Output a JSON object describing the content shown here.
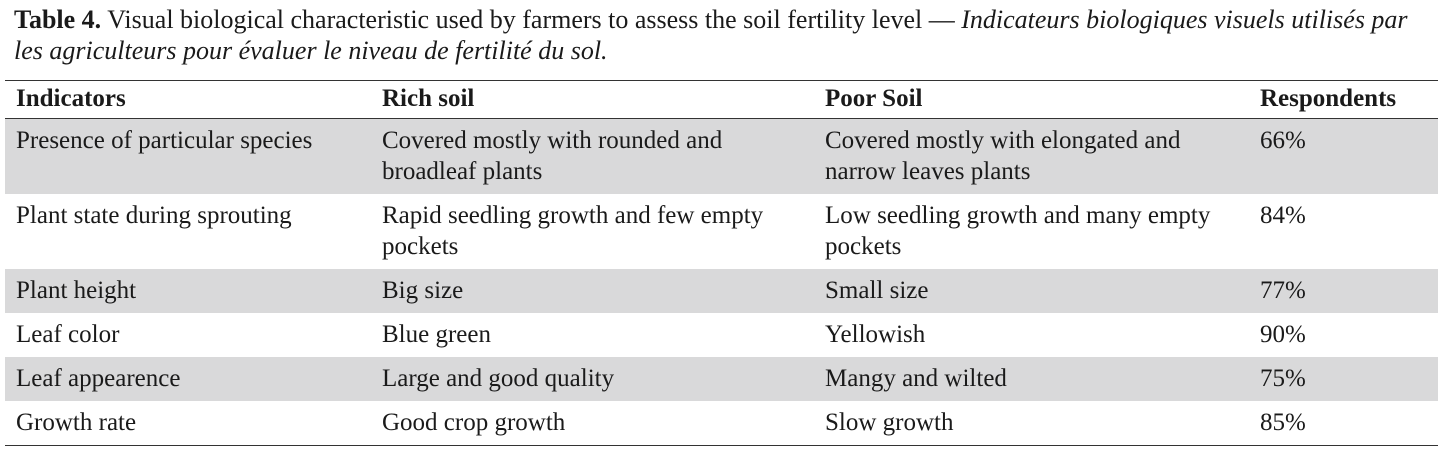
{
  "caption": {
    "label": "Table 4.",
    "text": "Visual biological characteristic used by farmers to assess the soil fertility level —",
    "text_fr": "Indicateurs biologiques visuels utilisés par les agriculteurs pour évaluer le niveau de fertilité du sol."
  },
  "table": {
    "headers": [
      "Indicators",
      "Rich soil",
      "Poor Soil",
      "Respondents"
    ],
    "rows": [
      [
        "Presence of particular species",
        "Covered mostly with rounded and broadleaf plants",
        "Covered mostly with elongated and narrow leaves plants",
        "66%"
      ],
      [
        "Plant state during sprouting",
        "Rapid seedling growth and few empty pockets",
        "Low seedling growth and many empty pockets",
        "84%"
      ],
      [
        "Plant height",
        "Big size",
        "Small size",
        "77%"
      ],
      [
        "Leaf color",
        "Blue green",
        "Yellowish",
        "90%"
      ],
      [
        "Leaf appearence",
        "Large and good quality",
        "Mangy and wilted",
        "75%"
      ],
      [
        "Growth rate",
        "Good crop growth",
        "Slow growth",
        "85%"
      ]
    ]
  }
}
